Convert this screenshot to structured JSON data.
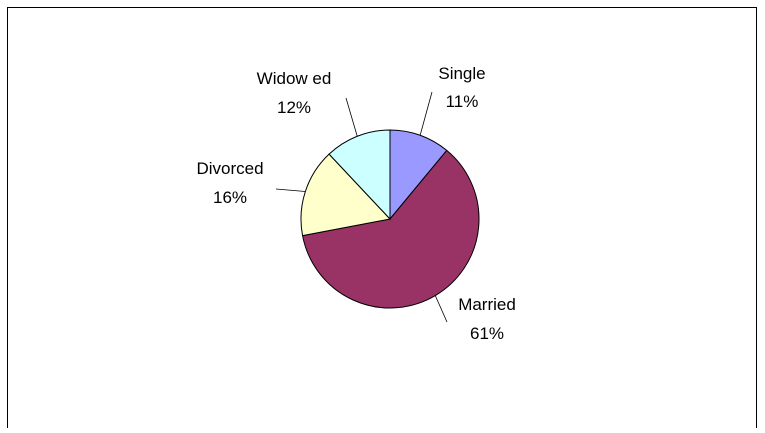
{
  "chart_data": {
    "type": "pie",
    "title": "",
    "start_angle_deg": 0,
    "direction": "clockwise",
    "slices": [
      {
        "label": "Single",
        "percent_label": "11%",
        "value": 11,
        "color": "#9999FF"
      },
      {
        "label": "Married",
        "percent_label": "61%",
        "value": 61,
        "color": "#993366"
      },
      {
        "label": "Divorced",
        "percent_label": "16%",
        "value": 16,
        "color": "#FFFFCC"
      },
      {
        "label": "Widow ed",
        "percent_label": "12%",
        "value": 12,
        "color": "#CCFFFF"
      }
    ],
    "data_labels": "category name and percentage",
    "leader_lines": true,
    "legend": "none",
    "border_color": "#000000",
    "slice_edge_color": "#000000"
  }
}
